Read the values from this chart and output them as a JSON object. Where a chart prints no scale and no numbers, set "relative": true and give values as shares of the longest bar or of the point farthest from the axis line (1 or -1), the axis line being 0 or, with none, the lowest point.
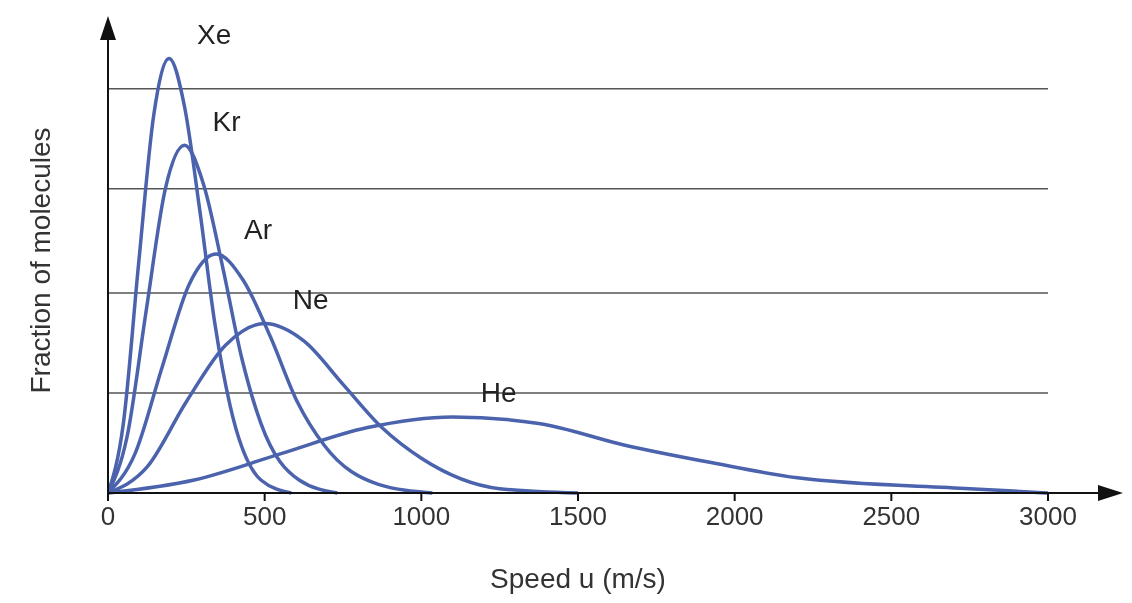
{
  "chart_data": {
    "type": "line",
    "relative": true,
    "xlabel": "Speed u (m/s)",
    "ylabel": "Fraction of molecules",
    "xlim": [
      0,
      3000
    ],
    "xticks": [
      0,
      500,
      1000,
      1500,
      2000,
      2500,
      3000
    ],
    "marker": "none",
    "line_style": "solid",
    "ref_lines": [
      {
        "axis": "y",
        "value": 0.23,
        "color": "#555555"
      },
      {
        "axis": "y",
        "value": 0.46,
        "color": "#555555"
      },
      {
        "axis": "y",
        "value": 0.7,
        "color": "#555555"
      },
      {
        "axis": "y",
        "value": 0.93,
        "color": "#555555"
      }
    ],
    "series": [
      {
        "name": "Xe",
        "color": "#4b62ad",
        "x": [
          0,
          49,
          98,
          146,
          195,
          244,
          293,
          341,
          390,
          488,
          585
        ],
        "values": [
          0,
          0.16,
          0.53,
          0.87,
          1,
          0.89,
          0.65,
          0.39,
          0.2,
          0.03,
          0
        ]
      },
      {
        "name": "Kr",
        "color": "#4b62ad",
        "x": [
          0,
          61,
          122,
          183,
          244,
          305,
          366,
          427,
          488,
          610,
          732
        ],
        "values": [
          0,
          0.13,
          0.42,
          0.7,
          0.8,
          0.71,
          0.52,
          0.31,
          0.16,
          0.03,
          0
        ]
      },
      {
        "name": "Ar",
        "color": "#4b62ad",
        "x": [
          0,
          86,
          173,
          259,
          345,
          431,
          518,
          604,
          690,
          863,
          1035
        ],
        "values": [
          0,
          0.09,
          0.29,
          0.48,
          0.55,
          0.49,
          0.36,
          0.21,
          0.11,
          0.02,
          0
        ]
      },
      {
        "name": "Ne",
        "color": "#4b62ad",
        "x": [
          0,
          125,
          250,
          375,
          500,
          625,
          750,
          875,
          1000,
          1250,
          1500
        ],
        "values": [
          0,
          0.06,
          0.21,
          0.34,
          0.39,
          0.35,
          0.25,
          0.15,
          0.08,
          0.01,
          0
        ]
      },
      {
        "name": "He",
        "color": "#4b62ad",
        "x": [
          0,
          275,
          550,
          825,
          1100,
          1375,
          1650,
          1925,
          2200,
          2750,
          3000
        ],
        "values": [
          0,
          0.03,
          0.09,
          0.15,
          0.175,
          0.16,
          0.11,
          0.07,
          0.035,
          0.01,
          0
        ]
      }
    ]
  }
}
